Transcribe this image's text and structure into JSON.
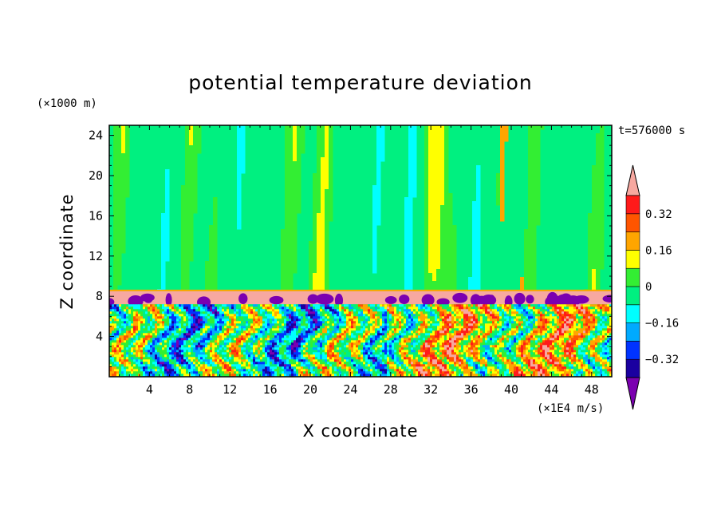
{
  "chart_data": {
    "type": "heatmap",
    "title": "potential temperature deviation",
    "xlabel": "X coordinate",
    "ylabel": "Z coordinate",
    "x_unit": "(×1E4 m/s)",
    "y_unit": "(×1000 m)",
    "time_label": "t=576000 s",
    "xlim": [
      0,
      50
    ],
    "ylim": [
      0,
      25
    ],
    "x_ticks": [
      "4",
      "8",
      "12",
      "16",
      "20",
      "24",
      "28",
      "32",
      "36",
      "40",
      "44",
      "48"
    ],
    "y_ticks": [
      "4",
      "8",
      "12",
      "16",
      "20",
      "24"
    ],
    "colorbar": {
      "levels": [
        -0.48,
        -0.4,
        -0.32,
        -0.24,
        -0.16,
        -0.08,
        0,
        0.08,
        0.16,
        0.24,
        0.32,
        0.4
      ],
      "labels": [
        "0.32",
        "0.16",
        "0",
        "−0.16",
        "−0.32"
      ],
      "colors": [
        "#7b00b0",
        "#1a00a0",
        "#0033ff",
        "#00aaff",
        "#00ffff",
        "#00f080",
        "#33ee33",
        "#ffff00",
        "#ffa500",
        "#ff5500",
        "#ff1a1a",
        "#f7a8a0"
      ]
    }
  }
}
